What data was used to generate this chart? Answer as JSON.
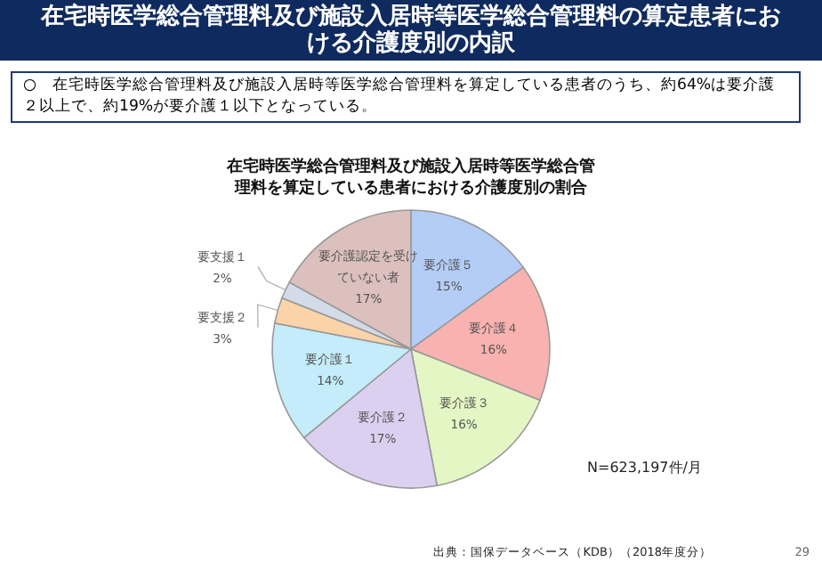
{
  "chart_data": {
    "type": "pie",
    "title": "在宅時医学総合管理料及び施設入居時等医学総合管理料の算定患者における介護度別の内訳",
    "subtitle": "在宅時医学総合管理料及び施設入居時等医学総合管理料を算定している患者における介護度別の割合",
    "categories": [
      "要介護５",
      "要介護４",
      "要介護３",
      "要介護２",
      "要介護１",
      "要支援２",
      "要支援１",
      "要介護認定を受けていない者"
    ],
    "values": [
      15,
      16,
      16,
      17,
      14,
      3,
      2,
      17
    ],
    "value_labels": [
      "15%",
      "16%",
      "16%",
      "17%",
      "14%",
      "3%",
      "2%",
      "17%"
    ],
    "colors": [
      "#b4cdf7",
      "#f8b2b0",
      "#e4f6c4",
      "#dcd0f0",
      "#c4ecfa",
      "#fbd3a8",
      "#d3dbe8",
      "#dcc0be"
    ],
    "annotations": [
      "○　在宅時医学総合管理料及び施設入居時等医学総合管理料を算定している患者のうち、約64%は要介護２以上で、約19%が要介護１以下となっている。",
      "N=623,197件/月",
      "出典：国保データベース（KDB）（2018年度分）",
      "29"
    ]
  }
}
